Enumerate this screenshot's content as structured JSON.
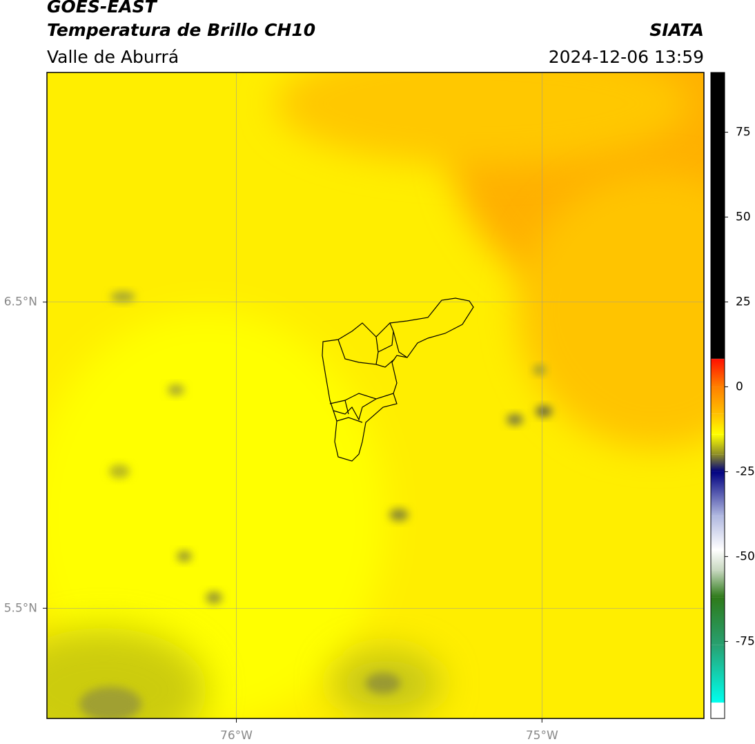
{
  "chart_data": {
    "type": "map",
    "title": "GOES-EAST",
    "subtitle": "Temperatura de Brillo CH10",
    "region": "Valle de Aburrá",
    "source": "SIATA",
    "timestamp": "2024-12-06 13:59",
    "xlim": [
      -76.62,
      -74.47
    ],
    "ylim": [
      5.14,
      7.25
    ],
    "xticks": [
      {
        "value": -76,
        "label": "76°W"
      },
      {
        "value": -75,
        "label": "75°W"
      }
    ],
    "yticks": [
      {
        "value": 6.5,
        "label": "6.5°N"
      },
      {
        "value": 5.5,
        "label": "5.5°N"
      }
    ],
    "grid": true,
    "colorbar": {
      "lim": [
        -97.7,
        92.6
      ],
      "ticks": [
        75,
        50,
        25,
        0,
        -25,
        -50,
        -75
      ],
      "stops": [
        {
          "value": 92.6,
          "color": "#000000"
        },
        {
          "value": 8.3,
          "color": "#000000"
        },
        {
          "value": 8.2,
          "color": "#ff1000"
        },
        {
          "value": 0,
          "color": "#ff8000"
        },
        {
          "value": -8,
          "color": "#ffc000"
        },
        {
          "value": -14,
          "color": "#ffff00"
        },
        {
          "value": -20,
          "color": "#8c8c28"
        },
        {
          "value": -25,
          "color": "#000080"
        },
        {
          "value": -38,
          "color": "#b0b8e0"
        },
        {
          "value": -48,
          "color": "#ffffff"
        },
        {
          "value": -54,
          "color": "#c8d8c0"
        },
        {
          "value": -62,
          "color": "#2e7a1a"
        },
        {
          "value": -76,
          "color": "#28a070"
        },
        {
          "value": -93,
          "color": "#00ffee"
        },
        {
          "value": -93.1,
          "color": "#ffffff"
        },
        {
          "value": -97.7,
          "color": "#ffffff"
        }
      ]
    }
  }
}
